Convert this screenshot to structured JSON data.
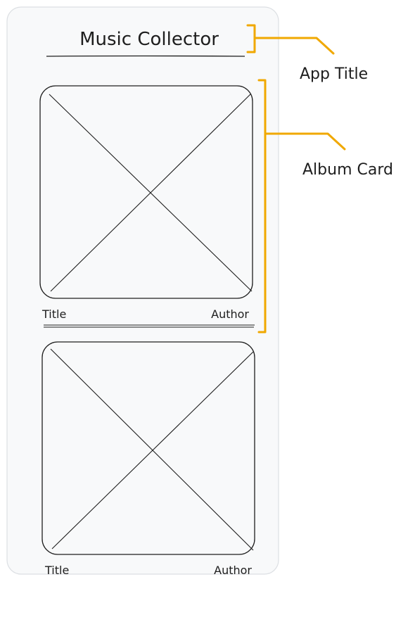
{
  "app": {
    "title": "Music Collector"
  },
  "cards": [
    {
      "title": "Title",
      "author": "Author"
    },
    {
      "title": "Title",
      "author": "Author"
    }
  ],
  "annotations": {
    "app_title": "App Title",
    "album_card": "Album Card"
  },
  "colors": {
    "phone_fill": "#f8f9fa",
    "phone_stroke": "#dcdfe3",
    "ink": "#1e1e1e",
    "annotation": "#f0a800"
  }
}
